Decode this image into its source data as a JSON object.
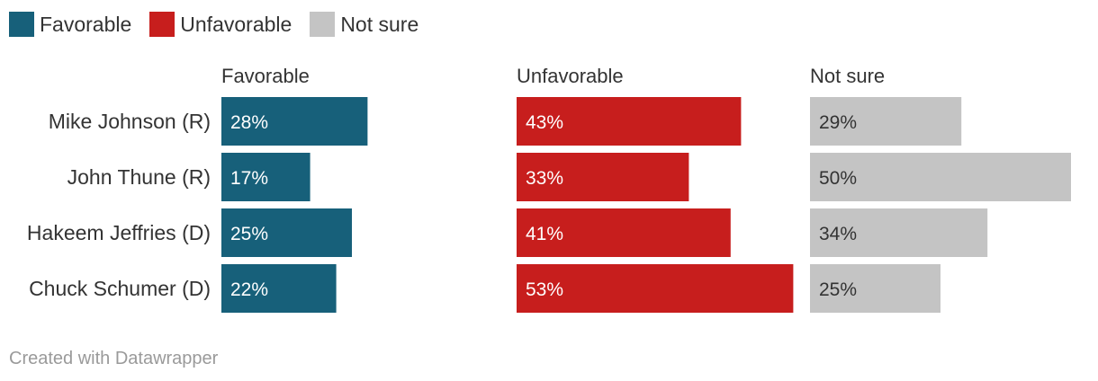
{
  "legend": [
    {
      "label": "Favorable",
      "color": "#17607a"
    },
    {
      "label": "Unfavorable",
      "color": "#c71e1d"
    },
    {
      "label": "Not sure",
      "color": "#c4c4c4"
    }
  ],
  "chart_data": {
    "type": "bar",
    "orientation": "horizontal",
    "layout": "split-bars",
    "categories": [
      "Mike Johnson (R)",
      "John Thune (R)",
      "Hakeem Jeffries (D)",
      "Chuck Schumer (D)"
    ],
    "series": [
      {
        "name": "Favorable",
        "color": "#17607a",
        "label_color": "#ffffff",
        "values": [
          28,
          17,
          25,
          22
        ],
        "labels": [
          "28%",
          "17%",
          "25%",
          "22%"
        ]
      },
      {
        "name": "Unfavorable",
        "color": "#c71e1d",
        "label_color": "#ffffff",
        "values": [
          43,
          33,
          41,
          53
        ],
        "labels": [
          "43%",
          "33%",
          "41%",
          "53%"
        ]
      },
      {
        "name": "Not sure",
        "color": "#c4c4c4",
        "label_color": "#333333",
        "values": [
          29,
          50,
          34,
          25
        ],
        "labels": [
          "29%",
          "50%",
          "34%",
          "25%"
        ]
      }
    ],
    "value_unit": "%",
    "legend_position": "top-left"
  },
  "footer": {
    "credit": "Created with Datawrapper"
  }
}
